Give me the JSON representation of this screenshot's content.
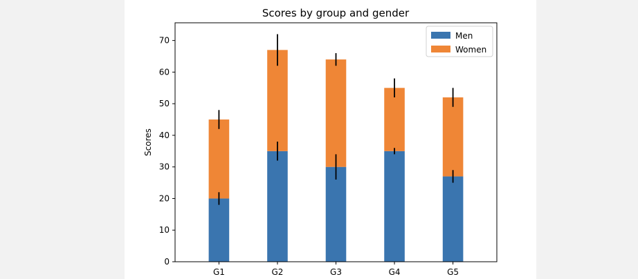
{
  "chart_data": {
    "type": "bar",
    "stacked": true,
    "title": "Scores by group and gender",
    "xlabel": "",
    "ylabel": "Scores",
    "categories": [
      "G1",
      "G2",
      "G3",
      "G4",
      "G5"
    ],
    "ylim": [
      0,
      75.6
    ],
    "yticks": [
      0,
      10,
      20,
      30,
      40,
      50,
      60,
      70
    ],
    "grid": false,
    "legend_position": "top-right",
    "series": [
      {
        "name": "Men",
        "color": "#3a75af",
        "values": [
          20,
          35,
          30,
          35,
          27
        ],
        "errors": [
          2,
          3,
          4,
          1,
          2
        ]
      },
      {
        "name": "Women",
        "color": "#ef8636",
        "values": [
          25,
          32,
          34,
          20,
          25
        ],
        "errors": [
          3,
          5,
          2,
          3,
          3
        ]
      }
    ]
  }
}
